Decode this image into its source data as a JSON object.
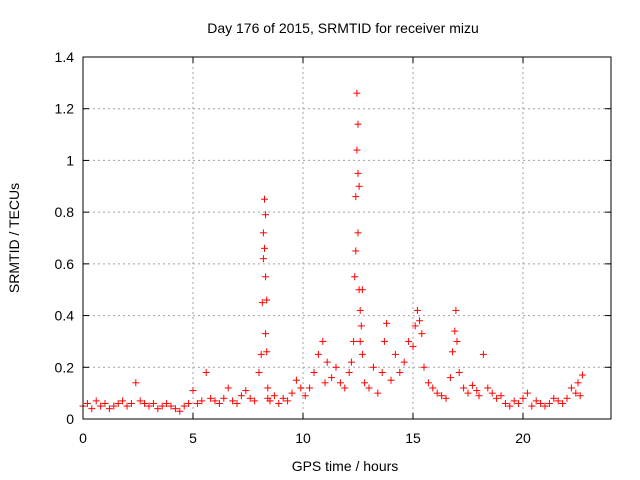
{
  "chart_data": {
    "type": "scatter",
    "title": "Day 176 of 2015, SRMTID for receiver mizu",
    "xlabel": "GPS time / hours",
    "ylabel": "SRMTID / TECUs",
    "xlim": [
      0,
      24
    ],
    "ylim": [
      0,
      1.4
    ],
    "xticks": [
      0,
      5,
      10,
      15,
      20
    ],
    "xtick_labels": [
      "0",
      "5",
      "10",
      "15",
      "20"
    ],
    "yticks": [
      0,
      0.2,
      0.4,
      0.6,
      0.8,
      1,
      1.2,
      1.4
    ],
    "ytick_labels": [
      "0",
      "0.2",
      "0.4",
      "0.6",
      "0.8",
      "1",
      "1.2",
      "1.4"
    ],
    "grid": true,
    "marker": "+",
    "color": "#ff0000",
    "series": [
      {
        "name": "SRMTID",
        "x": [
          0.0,
          0.2,
          0.4,
          0.6,
          0.8,
          1.0,
          1.2,
          1.4,
          1.6,
          1.8,
          2.0,
          2.2,
          2.4,
          2.6,
          2.8,
          3.0,
          3.2,
          3.4,
          3.6,
          3.8,
          4.0,
          4.2,
          4.4,
          4.6,
          4.8,
          5.0,
          5.2,
          5.4,
          5.6,
          5.8,
          6.0,
          6.2,
          6.4,
          6.6,
          6.8,
          7.0,
          7.2,
          7.4,
          7.6,
          7.8,
          8.0,
          8.1,
          8.15,
          8.2,
          8.2,
          8.25,
          8.25,
          8.3,
          8.3,
          8.3,
          8.35,
          8.35,
          8.4,
          8.4,
          8.5,
          8.7,
          8.9,
          9.1,
          9.3,
          9.5,
          9.7,
          9.9,
          10.1,
          10.3,
          10.5,
          10.7,
          10.9,
          11.0,
          11.1,
          11.3,
          11.5,
          11.7,
          11.9,
          12.1,
          12.2,
          12.3,
          12.35,
          12.4,
          12.4,
          12.45,
          12.45,
          12.5,
          12.5,
          12.5,
          12.55,
          12.55,
          12.6,
          12.6,
          12.65,
          12.7,
          12.7,
          12.8,
          13.0,
          13.2,
          13.4,
          13.6,
          13.7,
          13.8,
          14.0,
          14.2,
          14.4,
          14.6,
          14.8,
          15.0,
          15.1,
          15.2,
          15.3,
          15.4,
          15.5,
          15.7,
          15.9,
          16.1,
          16.3,
          16.5,
          16.7,
          16.8,
          16.9,
          16.95,
          17.0,
          17.1,
          17.3,
          17.5,
          17.7,
          17.9,
          18.0,
          18.2,
          18.4,
          18.6,
          18.8,
          19.0,
          19.2,
          19.4,
          19.6,
          19.8,
          20.0,
          20.2,
          20.4,
          20.6,
          20.8,
          21.0,
          21.2,
          21.4,
          21.6,
          21.8,
          22.0,
          22.2,
          22.4,
          22.5,
          22.6,
          22.7
        ],
        "y": [
          0.05,
          0.06,
          0.04,
          0.07,
          0.05,
          0.06,
          0.04,
          0.05,
          0.06,
          0.07,
          0.05,
          0.06,
          0.14,
          0.07,
          0.06,
          0.05,
          0.06,
          0.04,
          0.05,
          0.06,
          0.05,
          0.04,
          0.03,
          0.05,
          0.06,
          0.11,
          0.06,
          0.07,
          0.18,
          0.08,
          0.07,
          0.06,
          0.08,
          0.12,
          0.07,
          0.06,
          0.09,
          0.11,
          0.08,
          0.07,
          0.18,
          0.25,
          0.45,
          0.62,
          0.72,
          0.85,
          0.66,
          0.79,
          0.55,
          0.33,
          0.46,
          0.26,
          0.12,
          0.08,
          0.07,
          0.09,
          0.06,
          0.08,
          0.07,
          0.1,
          0.15,
          0.12,
          0.09,
          0.12,
          0.18,
          0.25,
          0.3,
          0.14,
          0.22,
          0.16,
          0.2,
          0.14,
          0.12,
          0.18,
          0.22,
          0.3,
          0.55,
          0.65,
          0.86,
          1.04,
          1.26,
          1.14,
          0.95,
          0.72,
          0.9,
          0.5,
          0.42,
          0.3,
          0.36,
          0.25,
          0.5,
          0.14,
          0.12,
          0.2,
          0.1,
          0.18,
          0.3,
          0.37,
          0.15,
          0.25,
          0.18,
          0.22,
          0.3,
          0.28,
          0.36,
          0.42,
          0.38,
          0.33,
          0.2,
          0.14,
          0.12,
          0.1,
          0.09,
          0.08,
          0.16,
          0.26,
          0.34,
          0.42,
          0.3,
          0.18,
          0.12,
          0.1,
          0.13,
          0.11,
          0.09,
          0.25,
          0.12,
          0.1,
          0.08,
          0.09,
          0.06,
          0.05,
          0.07,
          0.06,
          0.08,
          0.1,
          0.05,
          0.07,
          0.06,
          0.05,
          0.06,
          0.08,
          0.07,
          0.06,
          0.08,
          0.12,
          0.1,
          0.14,
          0.09,
          0.17
        ]
      }
    ]
  }
}
